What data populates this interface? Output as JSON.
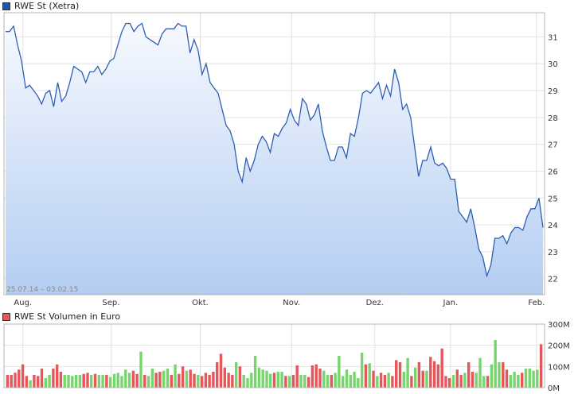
{
  "chart_data": [
    {
      "type": "area",
      "series_name": "RWE St (Xetra)",
      "legend_position": "top-left",
      "date_range_label": "25.07.14 – 03.02.15",
      "color": "#2e5fb5",
      "fill_top": "#f6f9fe",
      "fill_bottom": "#b3cdf2",
      "swatch_color": "#1f55ad",
      "grid": true,
      "ylim": [
        21.4,
        31.9
      ],
      "y_ticks": [
        "22",
        "23",
        "24",
        "25",
        "26",
        "27",
        "28",
        "29",
        "30",
        "31"
      ],
      "x_ticks": [
        "Aug.",
        "Sep.",
        "Okt.",
        "Nov.",
        "Dez.",
        "Jan.",
        "Feb."
      ],
      "values": [
        31.2,
        31.2,
        31.4,
        30.7,
        30.1,
        29.1,
        29.2,
        29.0,
        28.8,
        28.5,
        28.9,
        29.0,
        28.4,
        29.3,
        28.6,
        28.8,
        29.3,
        29.9,
        29.8,
        29.7,
        29.3,
        29.7,
        29.7,
        29.9,
        29.6,
        29.8,
        30.1,
        30.2,
        30.7,
        31.2,
        31.5,
        31.5,
        31.2,
        31.4,
        31.5,
        31.0,
        30.9,
        30.8,
        30.7,
        31.1,
        31.3,
        31.3,
        31.3,
        31.5,
        31.4,
        31.4,
        30.4,
        30.9,
        30.5,
        29.6,
        30.0,
        29.3,
        29.1,
        28.9,
        28.3,
        27.7,
        27.5,
        27.0,
        26.0,
        25.6,
        26.5,
        26.0,
        26.4,
        27.0,
        27.3,
        27.1,
        26.7,
        27.4,
        27.3,
        27.6,
        27.8,
        28.3,
        27.9,
        27.7,
        28.7,
        28.5,
        27.9,
        28.1,
        28.5,
        27.5,
        26.9,
        26.4,
        26.4,
        26.9,
        26.9,
        26.5,
        27.4,
        27.3,
        28.0,
        28.9,
        29.0,
        28.9,
        29.1,
        29.3,
        28.7,
        29.2,
        28.8,
        29.8,
        29.3,
        28.3,
        28.5,
        28.0,
        26.9,
        25.8,
        26.4,
        26.4,
        26.9,
        26.3,
        26.2,
        26.3,
        26.1,
        25.7,
        25.7,
        24.5,
        24.3,
        24.1,
        24.6,
        23.9,
        23.1,
        22.8,
        22.1,
        22.5,
        23.5,
        23.5,
        23.6,
        23.3,
        23.7,
        23.9,
        23.9,
        23.8,
        24.3,
        24.6,
        24.6,
        25.0,
        23.9
      ]
    },
    {
      "type": "bar",
      "series_name": "RWE St Volumen in Euro",
      "legend_position": "top-left",
      "swatch_color": "#e5575a",
      "up_color": "#76d66c",
      "down_color": "#e5575a",
      "grid": true,
      "ylim": [
        0,
        300
      ],
      "y_ticks": [
        "0M",
        "100M",
        "200M",
        "300M"
      ],
      "values": [
        60,
        60,
        70,
        85,
        110,
        55,
        35,
        60,
        55,
        90,
        45,
        60,
        90,
        110,
        75,
        60,
        60,
        55,
        60,
        60,
        65,
        70,
        60,
        65,
        60,
        60,
        60,
        50,
        65,
        70,
        55,
        85,
        70,
        80,
        65,
        170,
        60,
        55,
        90,
        70,
        75,
        80,
        90,
        60,
        110,
        65,
        100,
        80,
        85,
        65,
        60,
        55,
        70,
        60,
        75,
        120,
        160,
        95,
        70,
        60,
        120,
        100,
        60,
        45,
        70,
        150,
        95,
        85,
        80,
        65,
        70,
        75,
        75,
        55,
        55,
        60,
        105,
        60,
        60,
        50,
        105,
        110,
        90,
        80,
        60,
        60,
        70,
        150,
        55,
        85,
        60,
        75,
        45,
        165,
        110,
        115,
        80,
        55,
        70,
        60,
        70,
        55,
        130,
        120,
        75,
        140,
        55,
        95,
        120,
        80,
        80,
        145,
        125,
        110,
        185,
        55,
        45,
        60,
        85,
        60,
        70,
        120,
        75,
        70,
        140,
        55,
        55,
        110,
        225,
        120,
        120,
        85,
        60,
        75,
        60,
        70,
        90,
        90,
        80,
        85,
        205
      ],
      "up": [
        false,
        false,
        false,
        false,
        false,
        false,
        true,
        false,
        false,
        false,
        true,
        true,
        false,
        false,
        false,
        true,
        true,
        true,
        true,
        true,
        false,
        false,
        true,
        false,
        true,
        true,
        false,
        true,
        true,
        true,
        true,
        true,
        true,
        false,
        false,
        true,
        false,
        true,
        true,
        false,
        false,
        true,
        true,
        false,
        true,
        false,
        false,
        true,
        false,
        false,
        true,
        false,
        false,
        false,
        false,
        false,
        false,
        false,
        false,
        false,
        true,
        false,
        true,
        true,
        true,
        true,
        true,
        true,
        true,
        true,
        false,
        true,
        true,
        false,
        true,
        false,
        false,
        true,
        true,
        false,
        false,
        false,
        false,
        true,
        true,
        false,
        true,
        true,
        true,
        true,
        true,
        true,
        true,
        true,
        false,
        true,
        false,
        true,
        false,
        false,
        true,
        false,
        false,
        false,
        true,
        true,
        false,
        true,
        false,
        false,
        true,
        false,
        false,
        false,
        false,
        false,
        false,
        true,
        false,
        false,
        true,
        false,
        false,
        true,
        true,
        true,
        false,
        true,
        true,
        true,
        false,
        false,
        true,
        true,
        true,
        false,
        true,
        true,
        true,
        true,
        false
      ]
    }
  ]
}
